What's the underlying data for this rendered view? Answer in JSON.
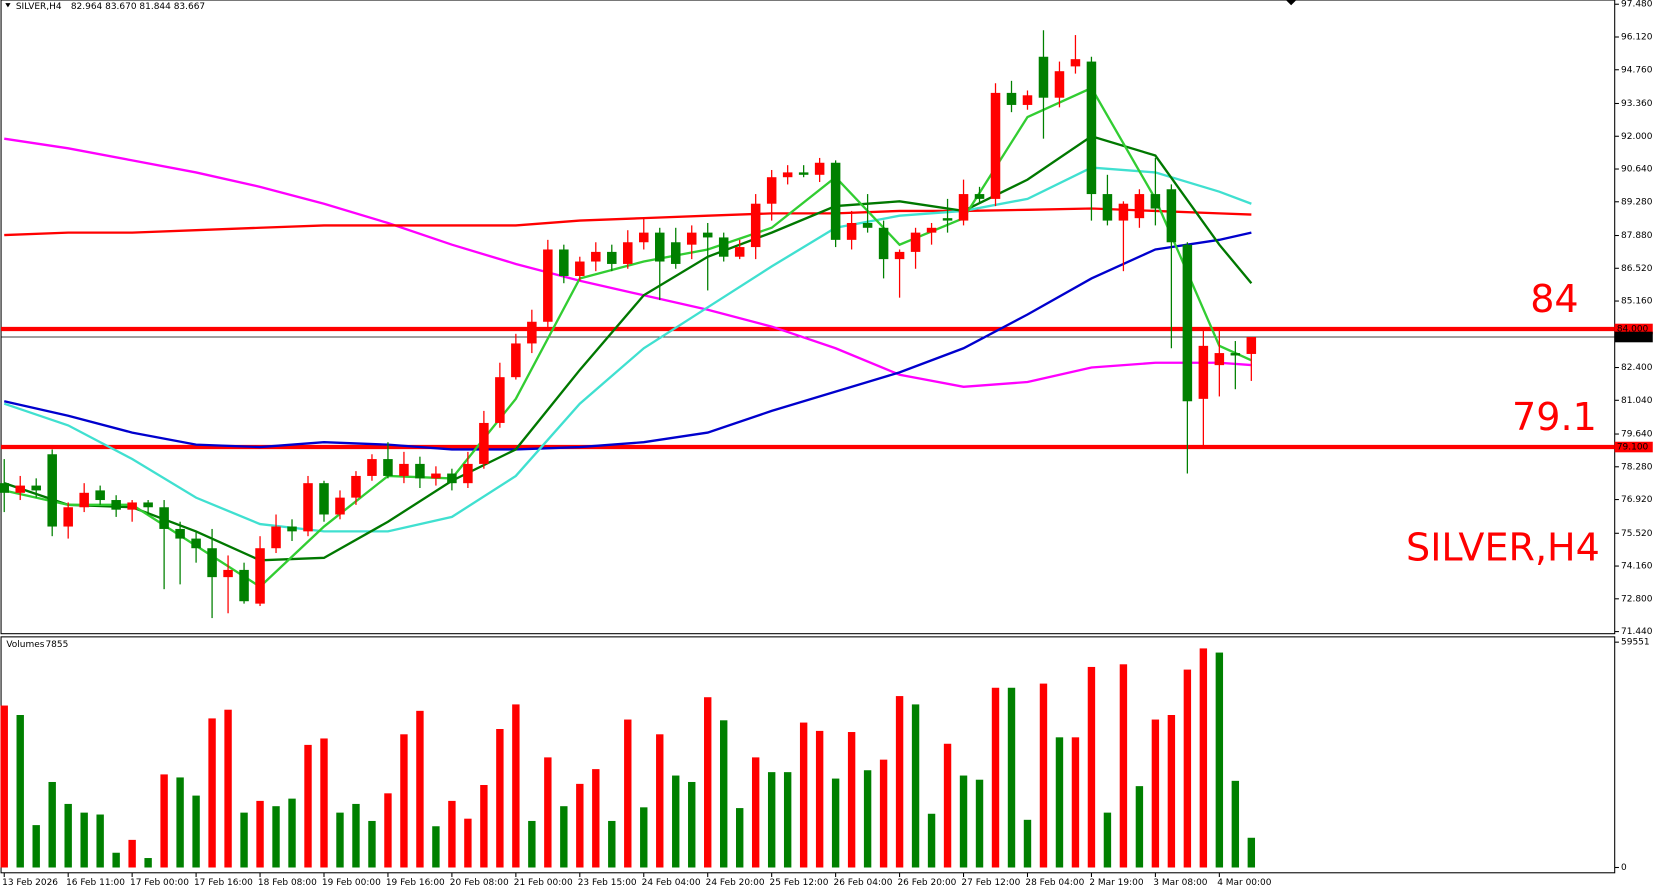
{
  "chart_data": [
    {
      "type": "candlestick",
      "title": "SILVER,H4",
      "header_values": "82.964 83.670 81.844 83.667",
      "categories": [
        "13 Feb 2026",
        null,
        null,
        null,
        "16 Feb 11:00",
        null,
        null,
        null,
        "17 Feb 00:00",
        null,
        null,
        null,
        "17 Feb 16:00",
        null,
        null,
        null,
        "18 Feb 08:00",
        null,
        null,
        null,
        "19 Feb 00:00",
        null,
        null,
        null,
        "19 Feb 16:00",
        null,
        null,
        null,
        "20 Feb 08:00",
        null,
        null,
        null,
        "21 Feb 00:00",
        null,
        null,
        null,
        "23 Feb 15:00",
        null,
        null,
        null,
        "24 Feb 04:00",
        null,
        null,
        null,
        "24 Feb 20:00",
        null,
        null,
        null,
        "25 Feb 12:00",
        null,
        null,
        null,
        "26 Feb 04:00",
        null,
        null,
        null,
        "26 Feb 20:00",
        null,
        null,
        null,
        "27 Feb 12:00",
        null,
        null,
        null,
        "28 Feb 04:00",
        null,
        null,
        null,
        "2 Mar 19:00",
        null,
        null,
        null,
        "3 Mar 08:00",
        null,
        null,
        null,
        "4 Mar 00:00",
        null,
        null
      ],
      "open": [
        77.6,
        77.2,
        77.5,
        78.8,
        75.8,
        76.6,
        77.3,
        76.9,
        76.5,
        76.8,
        76.6,
        75.7,
        75.3,
        74.9,
        73.7,
        74.0,
        72.6,
        74.9,
        75.8,
        75.6,
        77.6,
        76.3,
        77.0,
        77.9,
        78.6,
        77.9,
        78.4,
        77.8,
        78.0,
        77.6,
        78.4,
        80.1,
        82.0,
        83.4,
        84.3,
        87.3,
        86.2,
        86.8,
        87.2,
        86.7,
        87.6,
        88.0,
        87.6,
        87.5,
        88.0,
        87.8,
        87.0,
        87.4,
        89.2,
        90.3,
        90.5,
        90.4,
        90.9,
        87.7,
        88.4,
        88.2,
        86.9,
        87.2,
        88.0,
        88.6,
        88.5,
        89.6,
        89.4,
        93.8,
        93.3,
        95.3,
        93.6,
        94.9,
        95.1,
        89.6,
        88.5,
        88.6,
        89.6,
        89.8,
        87.5,
        81.1,
        82.5,
        83.0,
        82.964
      ],
      "high": [
        78.6,
        77.9,
        77.8,
        79.0,
        76.8,
        77.6,
        77.5,
        77.1,
        76.9,
        76.9,
        76.9,
        76.0,
        75.6,
        75.7,
        74.6,
        74.3,
        75.4,
        76.3,
        76.1,
        77.9,
        77.7,
        77.3,
        78.1,
        78.8,
        79.3,
        78.9,
        78.7,
        78.3,
        78.2,
        78.9,
        80.6,
        82.6,
        83.8,
        84.8,
        87.7,
        87.5,
        87.0,
        87.6,
        87.5,
        88.1,
        88.6,
        88.2,
        88.2,
        88.3,
        88.4,
        88.0,
        87.7,
        89.6,
        90.6,
        90.8,
        90.8,
        91.1,
        91.0,
        88.9,
        89.6,
        88.5,
        87.3,
        88.2,
        88.4,
        89.4,
        90.2,
        89.9,
        94.2,
        94.3,
        93.9,
        96.4,
        95.1,
        96.2,
        95.3,
        90.4,
        89.3,
        89.8,
        91.1,
        90.0,
        87.6,
        84.0,
        84.0,
        83.5,
        83.67
      ],
      "low": [
        76.4,
        76.9,
        77.0,
        75.4,
        75.3,
        76.4,
        76.7,
        76.2,
        76.0,
        76.3,
        73.2,
        73.4,
        74.3,
        72.0,
        72.2,
        72.6,
        72.5,
        74.7,
        75.2,
        75.4,
        76.0,
        76.1,
        76.7,
        77.7,
        77.8,
        77.6,
        77.4,
        77.5,
        77.3,
        77.4,
        78.2,
        79.9,
        81.9,
        83.0,
        84.0,
        85.9,
        86.0,
        86.4,
        86.4,
        86.5,
        87.3,
        85.2,
        86.5,
        86.9,
        85.6,
        86.8,
        86.9,
        86.9,
        88.5,
        90.0,
        90.3,
        90.1,
        87.4,
        87.3,
        88.0,
        86.1,
        85.3,
        86.5,
        87.5,
        88.0,
        88.3,
        89.2,
        89.1,
        93.0,
        93.1,
        91.9,
        93.2,
        94.6,
        88.5,
        88.3,
        86.4,
        88.2,
        88.3,
        83.2,
        78.0,
        79.1,
        81.2,
        81.5,
        81.844
      ],
      "close": [
        77.2,
        77.5,
        77.3,
        75.8,
        76.6,
        77.2,
        76.9,
        76.5,
        76.8,
        76.6,
        75.7,
        75.3,
        74.9,
        73.7,
        74.0,
        72.7,
        74.9,
        75.8,
        75.6,
        77.6,
        76.3,
        77.0,
        77.9,
        78.6,
        77.9,
        78.4,
        77.8,
        78.0,
        77.6,
        78.4,
        80.1,
        82.0,
        83.4,
        84.3,
        87.3,
        86.2,
        86.8,
        87.2,
        86.7,
        87.6,
        88.0,
        86.8,
        86.7,
        88.0,
        87.8,
        87.0,
        87.4,
        89.2,
        90.3,
        90.5,
        90.4,
        90.9,
        87.7,
        88.4,
        88.2,
        86.9,
        87.2,
        88.0,
        88.2,
        88.5,
        89.6,
        89.4,
        93.8,
        93.3,
        93.7,
        93.6,
        94.7,
        95.2,
        89.6,
        88.5,
        89.2,
        89.6,
        89.0,
        87.6,
        81.0,
        83.3,
        83.0,
        82.9,
        83.667
      ],
      "up_color": "#ff0000",
      "down_color": "#008000",
      "ylim": [
        71.44,
        97.48
      ],
      "yticks": [
        {
          "value": 97.48,
          "label": "97.480"
        },
        {
          "value": 96.12,
          "label": "96.120"
        },
        {
          "value": 94.76,
          "label": "94.760"
        },
        {
          "value": 93.36,
          "label": "93.360"
        },
        {
          "value": 92,
          "label": "92.000"
        },
        {
          "value": 90.64,
          "label": "90.640"
        },
        {
          "value": 89.28,
          "label": "89.280"
        },
        {
          "value": 87.88,
          "label": "87.880"
        },
        {
          "value": 86.52,
          "label": "86.520"
        },
        {
          "value": 85.16,
          "label": "85.160"
        },
        {
          "value": 82.4,
          "label": "82.400"
        },
        {
          "value": 81.04,
          "label": "81.040"
        },
        {
          "value": 79.64,
          "label": "79.640"
        },
        {
          "value": 78.28,
          "label": "78.280"
        },
        {
          "value": 76.92,
          "label": "76.920"
        },
        {
          "value": 75.52,
          "label": "75.520"
        },
        {
          "value": 74.16,
          "label": "74.160"
        },
        {
          "value": 72.8,
          "label": "72.800"
        },
        {
          "value": 71.44,
          "label": "71.440"
        }
      ],
      "hlines": [
        {
          "value": 84,
          "label": "84.000",
          "color": "#ff0000"
        },
        {
          "value": 79.1,
          "label": "79.100",
          "color": "#ff0000"
        }
      ],
      "lines": [
        {
          "color": "#ff00ff",
          "x": [
            0,
            4,
            8,
            12,
            16,
            20,
            24,
            28,
            32,
            36,
            40,
            44,
            48,
            52,
            56,
            60,
            64,
            68,
            72,
            76,
            78
          ],
          "values": [
            91.9,
            91.5,
            91.0,
            90.5,
            89.9,
            89.2,
            88.4,
            87.5,
            86.7,
            86.0,
            85.4,
            84.8,
            84.1,
            83.2,
            82.1,
            81.6,
            81.8,
            82.4,
            82.6,
            82.6,
            82.5
          ]
        },
        {
          "color": "#ff0000",
          "x": [
            0,
            4,
            8,
            12,
            16,
            20,
            24,
            28,
            32,
            36,
            40,
            44,
            48,
            52,
            56,
            60,
            64,
            68,
            72,
            76,
            78
          ],
          "values": [
            87.9,
            88.0,
            88.0,
            88.1,
            88.2,
            88.3,
            88.3,
            88.3,
            88.3,
            88.5,
            88.6,
            88.7,
            88.8,
            88.8,
            88.9,
            88.9,
            88.95,
            89.0,
            88.9,
            88.8,
            88.75
          ]
        },
        {
          "color": "#0000cd",
          "x": [
            0,
            4,
            8,
            12,
            16,
            20,
            24,
            28,
            32,
            36,
            40,
            44,
            48,
            52,
            56,
            60,
            64,
            68,
            72,
            76,
            78
          ],
          "values": [
            81.0,
            80.4,
            79.7,
            79.2,
            79.1,
            79.3,
            79.2,
            79.0,
            79.0,
            79.1,
            79.3,
            79.7,
            80.6,
            81.4,
            82.2,
            83.2,
            84.6,
            86.1,
            87.3,
            87.7,
            88.0
          ]
        },
        {
          "color": "#40e0d0",
          "x": [
            0,
            4,
            8,
            12,
            16,
            20,
            24,
            28,
            32,
            36,
            40,
            44,
            48,
            52,
            56,
            60,
            64,
            68,
            72,
            76,
            78
          ],
          "values": [
            80.9,
            80.0,
            78.6,
            77.0,
            75.9,
            75.6,
            75.6,
            76.2,
            77.9,
            80.9,
            83.2,
            84.9,
            86.6,
            88.2,
            88.7,
            88.9,
            89.4,
            90.7,
            90.5,
            89.7,
            89.2
          ]
        },
        {
          "color": "#007800",
          "x": [
            0,
            4,
            8,
            12,
            16,
            20,
            24,
            28,
            32,
            36,
            40,
            44,
            48,
            52,
            56,
            60,
            64,
            68,
            72,
            76,
            78
          ],
          "values": [
            77.6,
            76.7,
            76.6,
            75.6,
            74.4,
            74.5,
            76.0,
            77.7,
            79.0,
            82.3,
            85.4,
            87.0,
            88.0,
            89.1,
            89.3,
            88.9,
            90.2,
            92.0,
            91.2,
            87.5,
            85.9
          ]
        },
        {
          "color": "#32cd32",
          "x": [
            0,
            4,
            8,
            12,
            16,
            20,
            24,
            28,
            32,
            36,
            40,
            44,
            48,
            52,
            56,
            60,
            64,
            68,
            72,
            76,
            78
          ],
          "values": [
            77.3,
            76.7,
            76.7,
            75.0,
            73.3,
            75.8,
            77.9,
            77.8,
            81.1,
            86.1,
            86.8,
            87.3,
            88.2,
            90.3,
            87.5,
            88.6,
            92.8,
            94.0,
            89.4,
            83.3,
            82.7
          ]
        }
      ]
    },
    {
      "type": "bar",
      "title": "Volumes",
      "values": [
        42800,
        40300,
        11200,
        22600,
        16800,
        14500,
        14000,
        3900,
        7300,
        2500,
        24600,
        23800,
        19000,
        39400,
        41700,
        14500,
        17600,
        16200,
        18200,
        32400,
        34100,
        14500,
        16800,
        12300,
        19600,
        35200,
        41400,
        10900,
        17600,
        12900,
        21800,
        36600,
        43100,
        12300,
        29100,
        16200,
        22100,
        26000,
        12300,
        39100,
        15900,
        35200,
        24300,
        22600,
        45000,
        38900,
        15700,
        29100,
        25200,
        25200,
        38300,
        36100,
        23500,
        35800,
        25700,
        28500,
        45300,
        43100,
        14200,
        32700,
        24300,
        23200,
        47500,
        47500,
        12600,
        48600,
        34400,
        34400,
        53000,
        14500,
        53700,
        21500,
        39100,
        40300,
        52300,
        57900,
        56800,
        22900,
        7855
      ],
      "colors": [
        "#ff0000",
        "#008000",
        "#008000",
        "#008000",
        "#008000",
        "#008000",
        "#008000",
        "#008000",
        "#ff0000",
        "#008000",
        "#ff0000",
        "#008000",
        "#008000",
        "#ff0000",
        "#ff0000",
        "#008000",
        "#ff0000",
        "#008000",
        "#008000",
        "#ff0000",
        "#ff0000",
        "#008000",
        "#008000",
        "#008000",
        "#ff0000",
        "#ff0000",
        "#ff0000",
        "#008000",
        "#ff0000",
        "#ff0000",
        "#ff0000",
        "#ff0000",
        "#ff0000",
        "#008000",
        "#ff0000",
        "#008000",
        "#ff0000",
        "#ff0000",
        "#008000",
        "#ff0000",
        "#008000",
        "#ff0000",
        "#008000",
        "#008000",
        "#ff0000",
        "#008000",
        "#008000",
        "#ff0000",
        "#008000",
        "#008000",
        "#ff0000",
        "#ff0000",
        "#008000",
        "#ff0000",
        "#008000",
        "#ff0000",
        "#ff0000",
        "#008000",
        "#008000",
        "#ff0000",
        "#008000",
        "#008000",
        "#ff0000",
        "#008000",
        "#008000",
        "#ff0000",
        "#008000",
        "#ff0000",
        "#ff0000",
        "#008000",
        "#ff0000",
        "#008000",
        "#ff0000",
        "#ff0000",
        "#ff0000",
        "#ff0000",
        "#008000",
        "#008000",
        "#008000"
      ],
      "ylim": [
        0,
        59551
      ],
      "yticks": [
        0,
        59551
      ]
    }
  ]
}
